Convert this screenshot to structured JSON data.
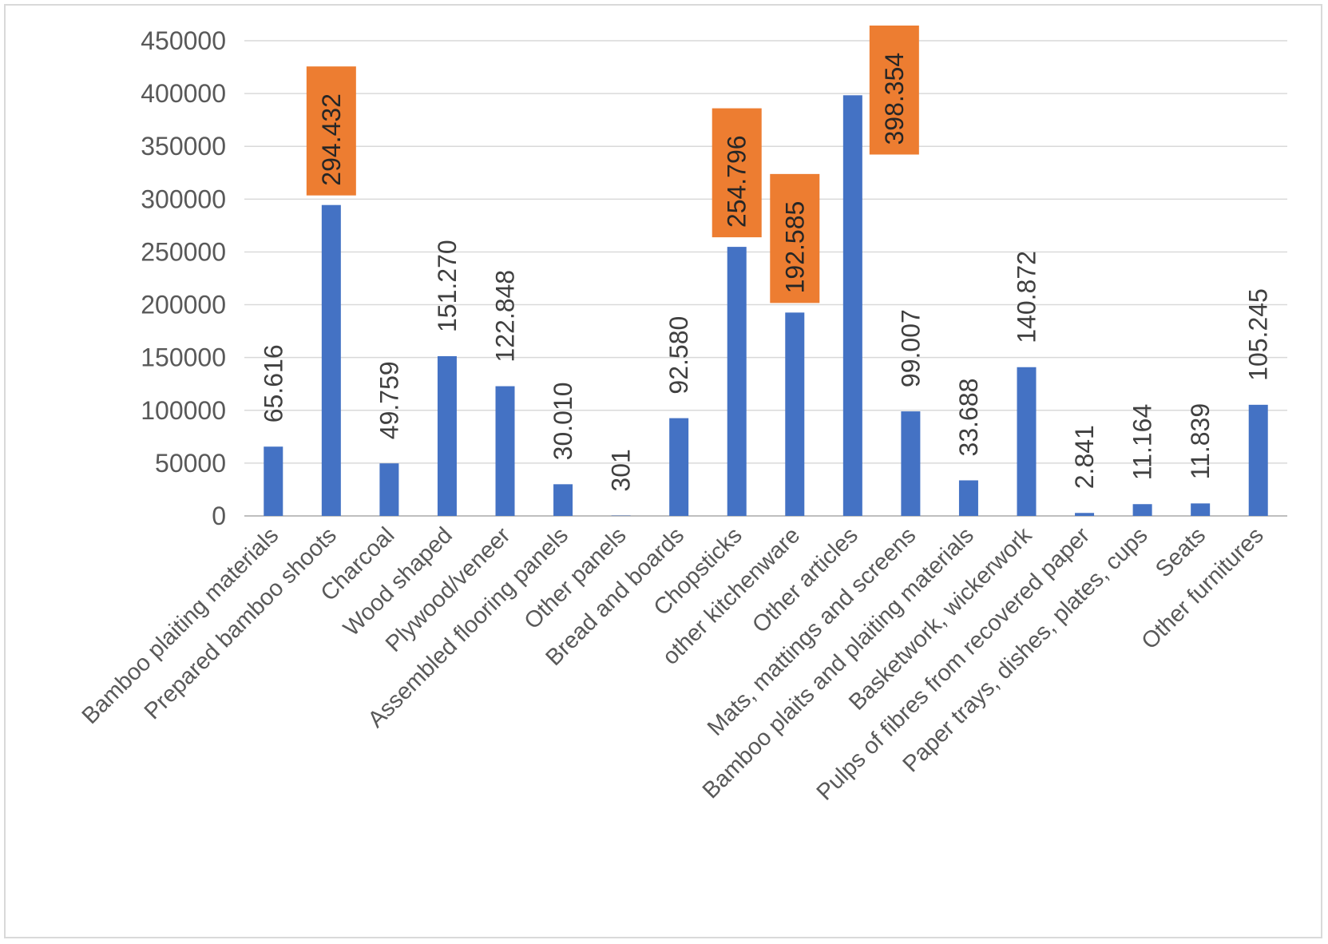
{
  "chart_data": {
    "type": "bar",
    "title": "",
    "xlabel": "",
    "ylabel": "",
    "ylim": [
      0,
      450000
    ],
    "yticks": [
      "0",
      "50000",
      "100000",
      "150000",
      "200000",
      "250000",
      "300000",
      "350000",
      "400000",
      "450000"
    ],
    "grid": true,
    "legend": "none",
    "categories": [
      "Bamboo plaiting materials",
      "Prepared bamboo shoots",
      "Charcoal",
      "Wood shaped",
      "Plywood/veneer",
      "Assembled flooring panels",
      "Other panels",
      "Bread and boards",
      "Chopsticks",
      "other kitchenware",
      "Other articles",
      "Mats, mattings and screens",
      "Bamboo plaits and plaiting materials",
      "Basketwork, wickerwork",
      "Pulps of fibres from recovered paper",
      "Paper trays, dishes, plates, cups",
      "Seats",
      "Other furnitures"
    ],
    "values": [
      65616,
      294432,
      49759,
      151270,
      122848,
      30010,
      301,
      92580,
      254796,
      192585,
      398354,
      99007,
      33688,
      140872,
      2841,
      11164,
      11839,
      105245
    ],
    "data_labels": [
      "65.616",
      "294.432",
      "49.759",
      "151.270",
      "122.848",
      "30.010",
      "301",
      "92.580",
      "254.796",
      "192.585",
      "398.354",
      "99.007",
      "33.688",
      "140.872",
      "2.841",
      "11.164",
      "11.839",
      "105.245"
    ],
    "highlighted": [
      false,
      true,
      false,
      false,
      false,
      false,
      false,
      false,
      true,
      true,
      true,
      false,
      false,
      false,
      false,
      false,
      false,
      false
    ],
    "colors": {
      "bar": "#4472c4",
      "highlight_label_bg": "#ed7d31",
      "grid": "#d9d9d9",
      "axis": "#bfbfbf"
    }
  }
}
